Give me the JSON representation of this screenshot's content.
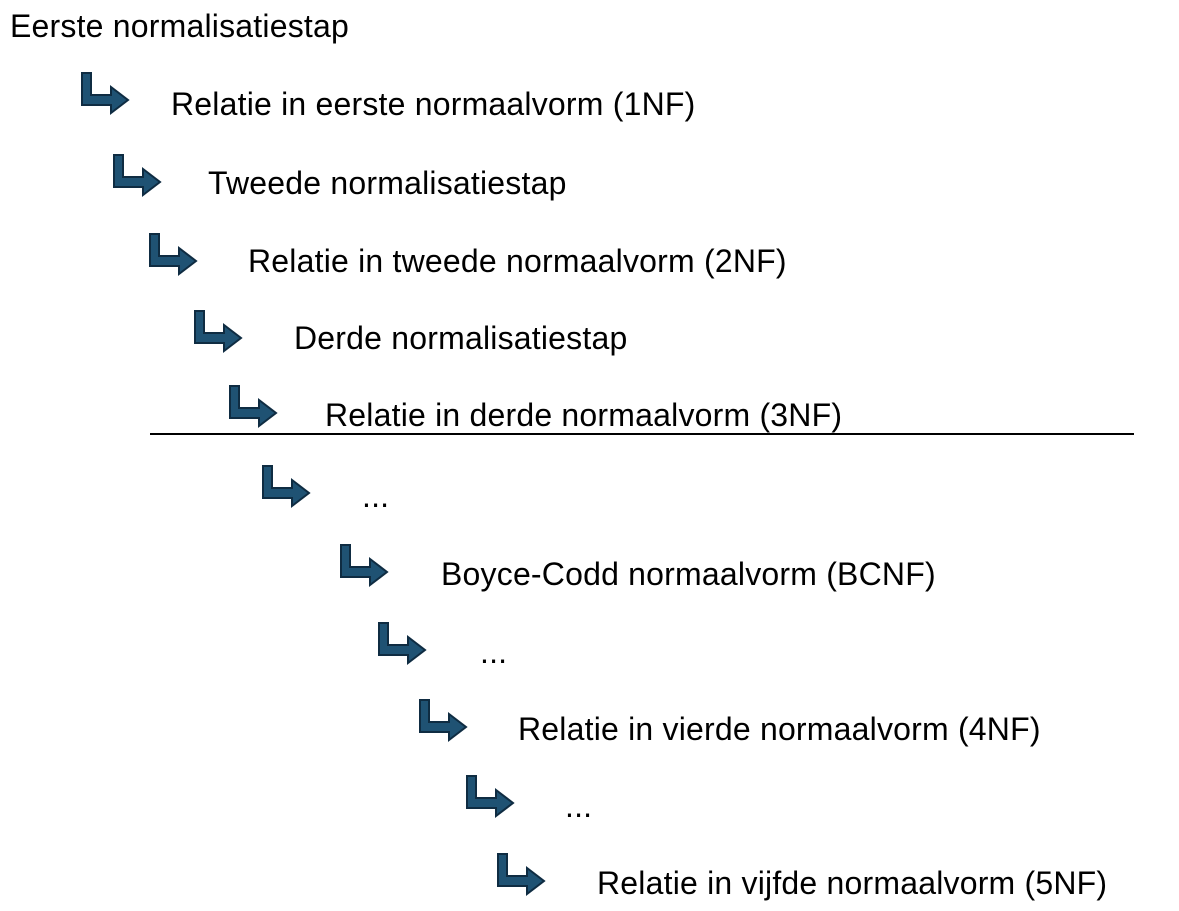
{
  "colors": {
    "arrow_fill": "#1f5273",
    "arrow_stroke": "#0f2c42",
    "text": "#000000",
    "divider": "#000000"
  },
  "diagram": {
    "start": "Eerste normalisatiestap",
    "steps": [
      {
        "label": "Relatie in eerste normaalvorm (1NF)",
        "icon": "bent-arrow-right-icon"
      },
      {
        "label": "Tweede normalisatiestap",
        "icon": "bent-arrow-right-icon"
      },
      {
        "label": "Relatie in tweede normaalvorm (2NF)",
        "icon": "bent-arrow-right-icon"
      },
      {
        "label": "Derde normalisatiestap",
        "icon": "bent-arrow-right-icon"
      },
      {
        "label": "Relatie in derde normaalvorm (3NF)",
        "icon": "bent-arrow-right-icon"
      },
      {
        "label": "...",
        "icon": "bent-arrow-right-icon"
      },
      {
        "label": "Boyce-Codd normaalvorm (BCNF)",
        "icon": "bent-arrow-right-icon"
      },
      {
        "label": "...",
        "icon": "bent-arrow-right-icon"
      },
      {
        "label": "Relatie in vierde normaalvorm (4NF)",
        "icon": "bent-arrow-right-icon"
      },
      {
        "label": "...",
        "icon": "bent-arrow-right-icon"
      },
      {
        "label": "Relatie in vijfde normaalvorm (5NF)",
        "icon": "bent-arrow-right-icon"
      }
    ]
  }
}
